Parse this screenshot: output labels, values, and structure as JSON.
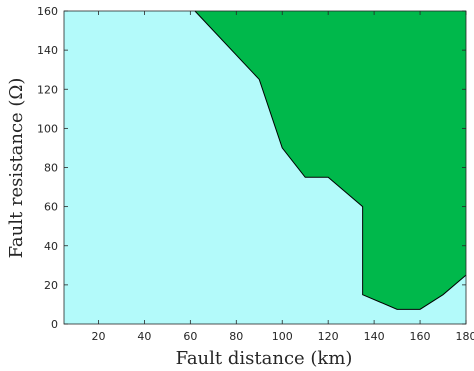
{
  "chart_data": {
    "type": "area",
    "title": "",
    "xlabel": "Fault distance (km)",
    "ylabel": "Fault resistance (Ω)",
    "xlim": [
      5,
      180
    ],
    "ylim": [
      0,
      160
    ],
    "x_ticks": [
      20,
      40,
      60,
      80,
      100,
      120,
      140,
      160,
      180
    ],
    "y_ticks": [
      0,
      20,
      40,
      60,
      80,
      100,
      120,
      140,
      160
    ],
    "grid": false,
    "legend": "none",
    "regions": [
      {
        "fill": "#b3fafa"
      },
      {
        "fill": "#00b84b",
        "boundary": [
          {
            "x": 62,
            "y": 160
          },
          {
            "x": 90,
            "y": 125
          },
          {
            "x": 100,
            "y": 90
          },
          {
            "x": 110,
            "y": 75
          },
          {
            "x": 120,
            "y": 75
          },
          {
            "x": 135,
            "y": 60
          },
          {
            "x": 135,
            "y": 15
          },
          {
            "x": 150,
            "y": 7.5
          },
          {
            "x": 160,
            "y": 7.5
          },
          {
            "x": 170,
            "y": 15
          },
          {
            "x": 180,
            "y": 25
          }
        ]
      }
    ]
  }
}
